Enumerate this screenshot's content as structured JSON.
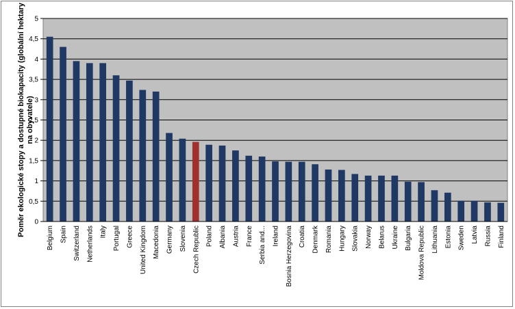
{
  "chart_data": {
    "type": "bar",
    "title": "",
    "xlabel": "",
    "ylabel": "Poměr ekologické stopy a dostupné biokapacity (globální hektary na obyvatele)",
    "ylim": [
      0,
      5
    ],
    "yticks": [
      "0",
      "0,5",
      "1",
      "1,5",
      "2",
      "2,5",
      "3",
      "3,5",
      "4",
      "4,5",
      "5"
    ],
    "grid": true,
    "legend": "none",
    "colors": {
      "bar": "#1f3864",
      "highlight": "#a0302e",
      "plot_background": "#c0c0c0",
      "gridline": "#000000"
    },
    "highlight_category": "Czech Republic",
    "categories": [
      "Belgium",
      "Spain",
      "Switzerland",
      "Netherlands",
      "Italy",
      "Portugal",
      "Greece",
      "United Kingdom",
      "Macedonia",
      "Germany",
      "Slovenia",
      "Czech Republic",
      "Poland",
      "Albania",
      "Austria",
      "France",
      "Serbia and...",
      "Ireland",
      "Bosnia Herzegovina",
      "Croatia",
      "Denmark",
      "Romania",
      "Hungary",
      "Slovakia",
      "Norway",
      "Belarus",
      "Ukraine",
      "Bulgaria",
      "Moldova Republic",
      "Lithuania",
      "Estonia",
      "Sweden",
      "Latvia",
      "Russia",
      "Finland"
    ],
    "values": [
      4.55,
      4.3,
      3.95,
      3.9,
      3.9,
      3.6,
      3.47,
      3.24,
      3.2,
      2.18,
      2.04,
      1.96,
      1.89,
      1.87,
      1.75,
      1.62,
      1.6,
      1.48,
      1.47,
      1.47,
      1.41,
      1.28,
      1.27,
      1.17,
      1.13,
      1.13,
      1.13,
      0.98,
      0.97,
      0.77,
      0.71,
      0.51,
      0.51,
      0.47,
      0.46
    ]
  }
}
